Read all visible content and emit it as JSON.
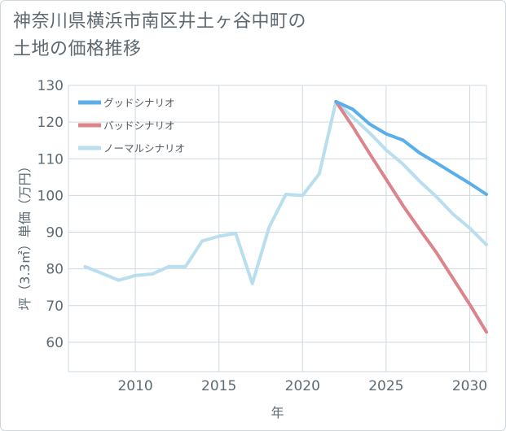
{
  "title": "神奈川県横浜市南区井土ヶ谷中町の\n土地の価格推移",
  "chart_data": {
    "type": "line",
    "title": "神奈川県横浜市南区井土ヶ谷中町の土地の価格推移",
    "xlabel": "年",
    "ylabel": "坪（3.3㎡）単価（万円）",
    "xlim": [
      2006,
      2031
    ],
    "ylim": [
      52,
      130
    ],
    "xticks": [
      2010,
      2015,
      2020,
      2025,
      2030
    ],
    "yticks": [
      60,
      70,
      80,
      90,
      100,
      110,
      120,
      130
    ],
    "grid": true,
    "legend_position": "top-left",
    "series": [
      {
        "name": "グッドシナリオ",
        "color": "#5aafea",
        "x": [
          2022,
          2023,
          2024,
          2025,
          2026,
          2027,
          2028,
          2029,
          2030,
          2031
        ],
        "values": [
          125.6,
          123.5,
          119.5,
          116.8,
          115.1,
          111.6,
          108.9,
          106.1,
          103.3,
          100.3
        ]
      },
      {
        "name": "バッドシナリオ",
        "color": "#dc848c",
        "x": [
          2022,
          2023,
          2024,
          2025,
          2026,
          2027,
          2028,
          2029,
          2030,
          2031
        ],
        "values": [
          125.6,
          118.8,
          111.5,
          104.4,
          97.3,
          90.8,
          84.5,
          77.4,
          70.3,
          62.8
        ]
      },
      {
        "name": "ノーマルシナリオ",
        "color": "#b9deee",
        "x": [
          2007,
          2008,
          2009,
          2010,
          2011,
          2012,
          2013,
          2014,
          2015,
          2016,
          2017,
          2018,
          2019,
          2020,
          2021,
          2022,
          2023,
          2024,
          2025,
          2026,
          2027,
          2028,
          2029,
          2030,
          2031
        ],
        "values": [
          80.6,
          78.8,
          76.9,
          78.2,
          78.6,
          80.6,
          80.6,
          87.6,
          88.9,
          89.7,
          76.0,
          91.3,
          100.3,
          100.0,
          105.9,
          125.6,
          121.3,
          117.1,
          112.4,
          108.6,
          103.9,
          99.7,
          94.9,
          91.1,
          86.6
        ]
      }
    ]
  }
}
